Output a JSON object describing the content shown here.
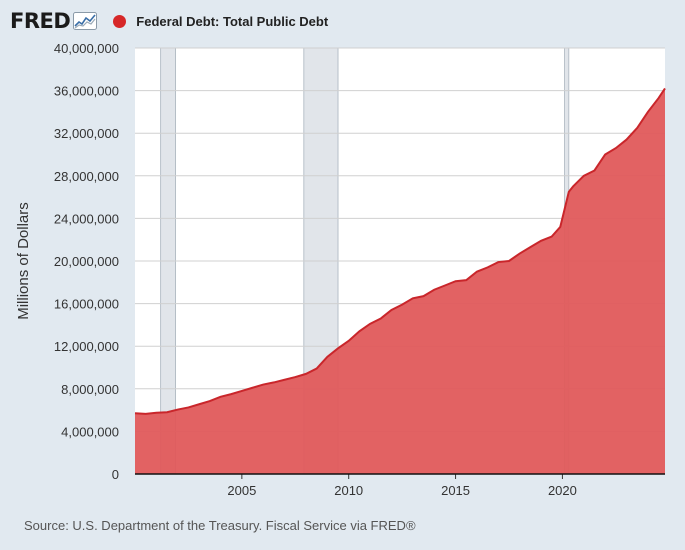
{
  "header": {
    "logo_text": "FRED",
    "legend_label": "Federal Debt: Total Public Debt",
    "legend_color": "#d62728"
  },
  "source_text": "Source: U.S. Department of the Treasury. Fiscal Service via FRED®",
  "colors": {
    "background": "#e1e9f0",
    "plot_background": "#ffffff",
    "area_fill": "#e05a5b",
    "line": "#c9262b",
    "recession": "#e1e5ea",
    "grid": "#d0d0d0"
  },
  "chart_data": {
    "type": "area",
    "title": "",
    "xlabel": "",
    "ylabel": "Millions of Dollars",
    "xlim": [
      2000.0,
      2024.8
    ],
    "ylim": [
      0,
      40000000
    ],
    "y_ticks": [
      0,
      4000000,
      8000000,
      12000000,
      16000000,
      20000000,
      24000000,
      28000000,
      32000000,
      36000000,
      40000000
    ],
    "y_tick_labels": [
      "0",
      "4,000,000",
      "8,000,000",
      "12,000,000",
      "16,000,000",
      "20,000,000",
      "24,000,000",
      "28,000,000",
      "32,000,000",
      "36,000,000",
      "40,000,000"
    ],
    "x_ticks": [
      2005,
      2010,
      2015,
      2020
    ],
    "x_tick_labels": [
      "2005",
      "2010",
      "2015",
      "2020"
    ],
    "grid": true,
    "recessions": [
      [
        2001.2,
        2001.9
      ],
      [
        2007.9,
        2009.5
      ],
      [
        2020.1,
        2020.3
      ]
    ],
    "series": [
      {
        "name": "Federal Debt: Total Public Debt",
        "x": [
          2000.0,
          2000.5,
          2001.0,
          2001.5,
          2002.0,
          2002.5,
          2003.0,
          2003.5,
          2004.0,
          2004.5,
          2005.0,
          2005.5,
          2006.0,
          2006.5,
          2007.0,
          2007.5,
          2008.0,
          2008.5,
          2009.0,
          2009.5,
          2010.0,
          2010.5,
          2011.0,
          2011.5,
          2012.0,
          2012.5,
          2013.0,
          2013.5,
          2014.0,
          2014.5,
          2015.0,
          2015.5,
          2016.0,
          2016.5,
          2017.0,
          2017.5,
          2018.0,
          2018.5,
          2019.0,
          2019.5,
          2019.9,
          2020.3,
          2020.5,
          2021.0,
          2021.5,
          2022.0,
          2022.5,
          2023.0,
          2023.5,
          2024.0,
          2024.5,
          2024.8
        ],
        "values": [
          5700000,
          5650000,
          5750000,
          5800000,
          6050000,
          6250000,
          6550000,
          6850000,
          7250000,
          7500000,
          7800000,
          8100000,
          8400000,
          8600000,
          8850000,
          9100000,
          9400000,
          9900000,
          11000000,
          11800000,
          12500000,
          13400000,
          14100000,
          14600000,
          15400000,
          15900000,
          16500000,
          16700000,
          17300000,
          17700000,
          18100000,
          18200000,
          19000000,
          19400000,
          19900000,
          20000000,
          20700000,
          21300000,
          21900000,
          22300000,
          23200000,
          26500000,
          27000000,
          28000000,
          28500000,
          30000000,
          30600000,
          31400000,
          32500000,
          34000000,
          35300000,
          36200000
        ]
      }
    ]
  }
}
